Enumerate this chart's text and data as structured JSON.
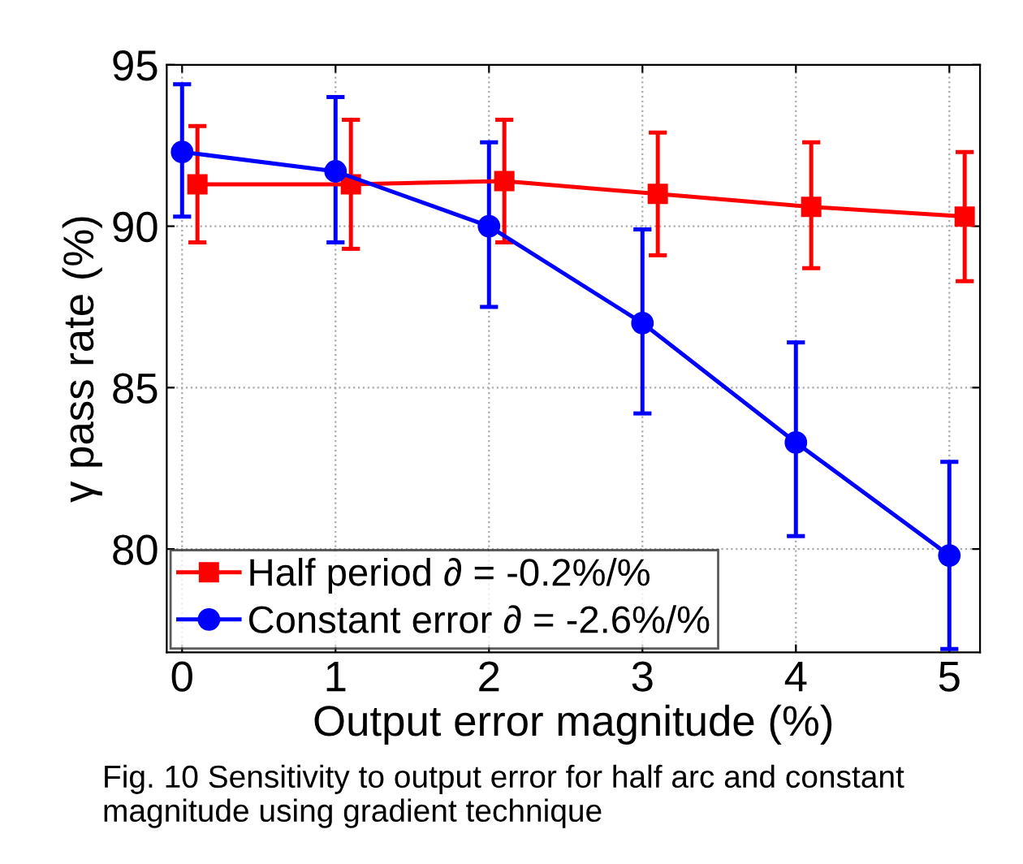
{
  "chart_data": {
    "type": "line",
    "xlabel": "Output error magnitude (%)",
    "ylabel": "γ pass rate (%)",
    "xlim": [
      -0.1,
      5.2
    ],
    "xticks": [
      0,
      1,
      2,
      3,
      4,
      5
    ],
    "ylim": [
      76.8,
      95
    ],
    "yticks": [
      80,
      85,
      90,
      95
    ],
    "grid": true,
    "legend": "bottom left",
    "line_style": "solid",
    "series": [
      {
        "name": "Half period ∂ = -0.2%/%",
        "color": "#ff0000",
        "marker": "square",
        "x": [
          0.1,
          1.1,
          2.1,
          3.1,
          4.1,
          5.1
        ],
        "values": [
          91.3,
          91.3,
          91.4,
          91.0,
          90.6,
          90.3
        ],
        "errors": [
          [
            89.5,
            93.1
          ],
          [
            89.3,
            93.3
          ],
          [
            89.5,
            93.3
          ],
          [
            89.1,
            92.9
          ],
          [
            88.7,
            92.6
          ],
          [
            88.3,
            92.3
          ]
        ]
      },
      {
        "name": "Constant error ∂ = -2.6%/%",
        "color": "#0000ff",
        "marker": "circle",
        "x": [
          0,
          1,
          2,
          3,
          4,
          5
        ],
        "values": [
          92.3,
          91.7,
          90.0,
          87.0,
          83.3,
          79.8
        ],
        "errors": [
          [
            90.3,
            94.4
          ],
          [
            89.5,
            94.0
          ],
          [
            87.5,
            92.6
          ],
          [
            84.2,
            89.9
          ],
          [
            80.4,
            86.4
          ],
          [
            76.9,
            82.7
          ]
        ]
      }
    ],
    "annotations": [
      "Fig. 10 Sensitivity to output error for half arc and constant magnitude using gradient technique"
    ]
  }
}
